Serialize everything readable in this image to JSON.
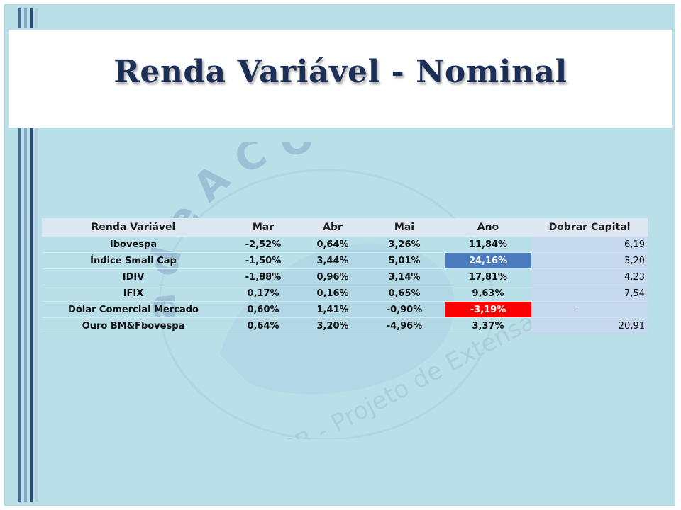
{
  "slide": {
    "title": "Renda Variável - Nominal",
    "watermark_text": "UFPB - Projeto de Extensão"
  },
  "table": {
    "headers": [
      "Renda Variável",
      "Mar",
      "Abr",
      "Mai",
      "Ano",
      "Dobrar Capital"
    ],
    "rows": [
      {
        "name": "Ibovespa",
        "mar": "-2,52%",
        "abr": "0,64%",
        "mai": "3,26%",
        "ano": "11,84%",
        "dobrar": "6,19",
        "highlight": ""
      },
      {
        "name": "Índice Small Cap",
        "mar": "-1,50%",
        "abr": "3,44%",
        "mai": "5,01%",
        "ano": "24,16%",
        "dobrar": "3,20",
        "highlight": "blue"
      },
      {
        "name": "IDIV",
        "mar": "-1,88%",
        "abr": "0,96%",
        "mai": "3,14%",
        "ano": "17,81%",
        "dobrar": "4,23",
        "highlight": ""
      },
      {
        "name": "IFIX",
        "mar": "0,17%",
        "abr": "0,16%",
        "mai": "0,65%",
        "ano": "9,63%",
        "dobrar": "7,54",
        "highlight": ""
      },
      {
        "name": "Dólar Comercial Mercado",
        "mar": "0,60%",
        "abr": "1,41%",
        "mai": "-0,90%",
        "ano": "-3,19%",
        "dobrar": "-",
        "highlight": "red"
      },
      {
        "name": "Ouro BM&Fbovespa",
        "mar": "0,64%",
        "abr": "3,20%",
        "mai": "-4,96%",
        "ano": "3,37%",
        "dobrar": "20,91",
        "highlight": ""
      }
    ]
  },
  "colors": {
    "title": "#1c2f56",
    "background": "#b9dfe9",
    "header_row": "#dde7f1",
    "dobrar_column": "#c6d9ee",
    "highlight_blue": "#4a7bbc",
    "highlight_red": "#ff0000"
  }
}
